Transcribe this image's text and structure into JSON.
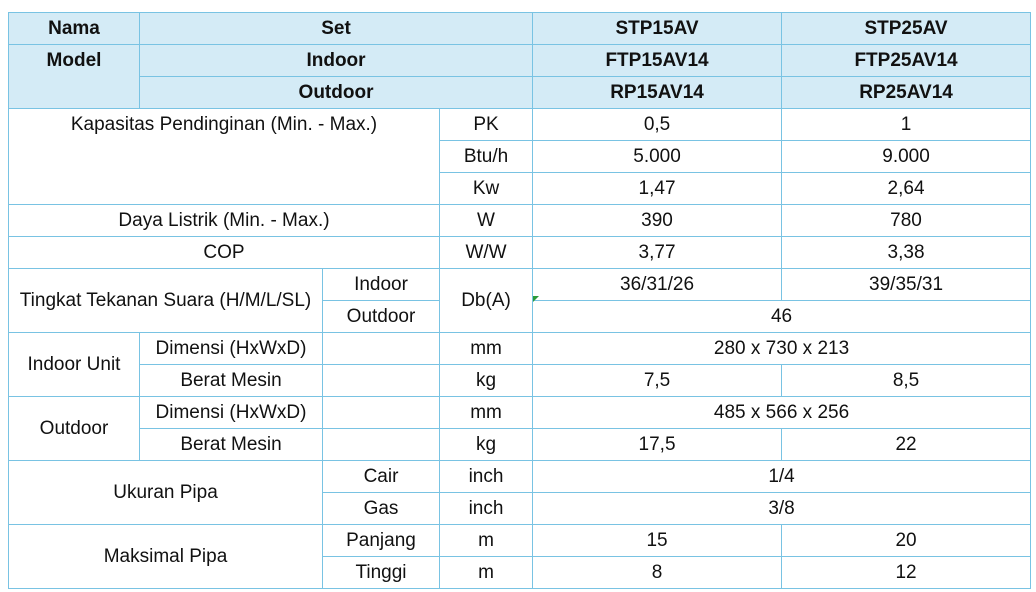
{
  "header": {
    "nama": "Nama",
    "model": "Model",
    "set_label": "Set",
    "indoor_label": "Indoor",
    "outdoor_label": "Outdoor",
    "set": [
      "STP15AV",
      "STP25AV"
    ],
    "indoor": [
      "FTP15AV14",
      "FTP25AV14"
    ],
    "outdoor": [
      "RP15AV14",
      "RP25AV14"
    ]
  },
  "capacity": {
    "label": "Kapasitas Pendinginan (Min. - Max.)",
    "rows": [
      {
        "unit": "PK",
        "values": [
          "0,5",
          "1"
        ]
      },
      {
        "unit": "Btu/h",
        "values": [
          "5.000",
          "9.000"
        ]
      },
      {
        "unit": "Kw",
        "values": [
          "1,47",
          "2,64"
        ]
      }
    ]
  },
  "power": {
    "label": "Daya Listrik (Min. - Max.)",
    "unit": "W",
    "values": [
      "390",
      "780"
    ]
  },
  "cop": {
    "label": "COP",
    "unit": "W/W",
    "values": [
      "3,77",
      "3,38"
    ]
  },
  "noise": {
    "label": "Tingkat Tekanan Suara (H/M/L/SL)",
    "unit": "Db(A)",
    "indoor_label": "Indoor",
    "indoor_values": [
      "36/31/26",
      "39/35/31"
    ],
    "outdoor_label": "Outdoor",
    "outdoor_value": "46"
  },
  "indoor_unit": {
    "label": "Indoor Unit",
    "dim_label": "Dimensi (HxWxD)",
    "dim_unit": "mm",
    "dim_value": "280 x 730 x 213",
    "weight_label": "Berat Mesin",
    "weight_unit": "kg",
    "weight_values": [
      "7,5",
      "8,5"
    ]
  },
  "outdoor_unit": {
    "label": "Outdoor",
    "dim_label": "Dimensi (HxWxD)",
    "dim_unit": "mm",
    "dim_value": "485 x 566 x 256",
    "weight_label": "Berat Mesin",
    "weight_unit": "kg",
    "weight_values": [
      "17,5",
      "22"
    ]
  },
  "pipe_size": {
    "label": "Ukuran Pipa",
    "liquid_label": "Cair",
    "liquid_unit": "inch",
    "liquid_value": "1/4",
    "gas_label": "Gas",
    "gas_unit": "inch",
    "gas_value": "3/8"
  },
  "pipe_max": {
    "label": "Maksimal Pipa",
    "length_label": "Panjang",
    "length_unit": "m",
    "length_values": [
      "15",
      "20"
    ],
    "height_label": "Tinggi",
    "height_unit": "m",
    "height_values": [
      "8",
      "12"
    ]
  }
}
